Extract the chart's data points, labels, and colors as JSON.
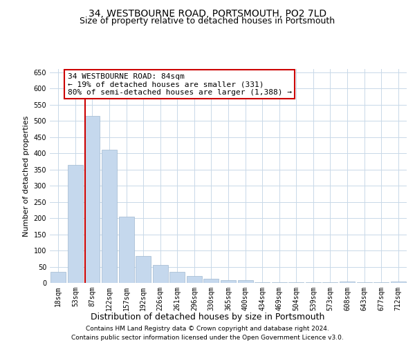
{
  "title": "34, WESTBOURNE ROAD, PORTSMOUTH, PO2 7LD",
  "subtitle": "Size of property relative to detached houses in Portsmouth",
  "xlabel": "Distribution of detached houses by size in Portsmouth",
  "ylabel": "Number of detached properties",
  "categories": [
    "18sqm",
    "53sqm",
    "87sqm",
    "122sqm",
    "157sqm",
    "192sqm",
    "226sqm",
    "261sqm",
    "296sqm",
    "330sqm",
    "365sqm",
    "400sqm",
    "434sqm",
    "469sqm",
    "504sqm",
    "539sqm",
    "573sqm",
    "608sqm",
    "643sqm",
    "677sqm",
    "712sqm"
  ],
  "values": [
    35,
    365,
    515,
    410,
    205,
    82,
    55,
    35,
    22,
    12,
    8,
    8,
    2,
    2,
    2,
    2,
    2,
    5,
    2,
    2,
    5
  ],
  "bar_color": "#c5d8ed",
  "bar_edge_color": "#a0b8d0",
  "vline_color": "#cc0000",
  "vline_pos": 1.575,
  "annotation_text_line1": "34 WESTBOURNE ROAD: 84sqm",
  "annotation_text_line2": "← 19% of detached houses are smaller (331)",
  "annotation_text_line3": "80% of semi-detached houses are larger (1,388) →",
  "annotation_box_color": "#ffffff",
  "annotation_box_edge": "#cc0000",
  "ylim": [
    0,
    660
  ],
  "yticks": [
    0,
    50,
    100,
    150,
    200,
    250,
    300,
    350,
    400,
    450,
    500,
    550,
    600,
    650
  ],
  "bg_color": "#ffffff",
  "grid_color": "#c8d8e8",
  "footer1": "Contains HM Land Registry data © Crown copyright and database right 2024.",
  "footer2": "Contains public sector information licensed under the Open Government Licence v3.0.",
  "title_fontsize": 10,
  "subtitle_fontsize": 9,
  "xlabel_fontsize": 9,
  "ylabel_fontsize": 8,
  "tick_fontsize": 7,
  "annotation_fontsize": 8,
  "footer_fontsize": 6.5
}
